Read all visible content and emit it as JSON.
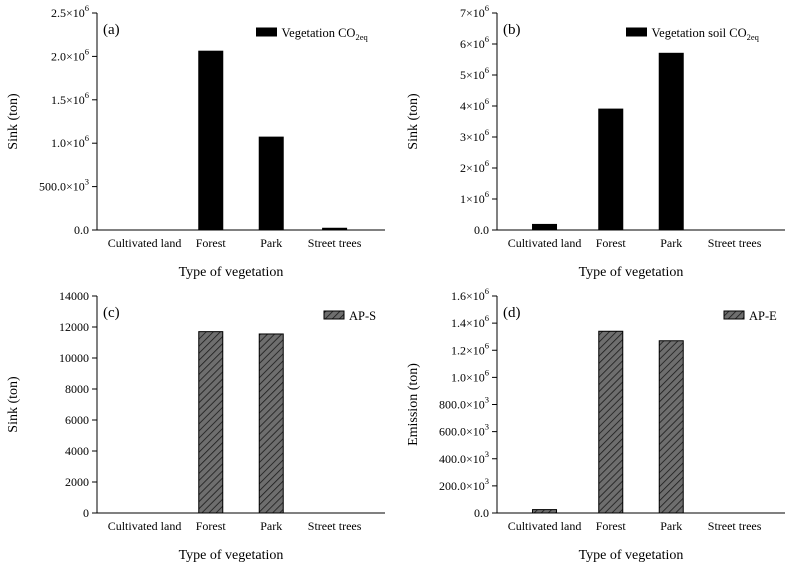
{
  "colors": {
    "solid": "#000000",
    "hatch_fill": "#6e6e6e",
    "hatch_line": "#1a1a1a",
    "axis": "#000000"
  },
  "chart_data": [
    {
      "type": "bar",
      "panel_label": "(a)",
      "categories": [
        "Cultivated land",
        "Forest",
        "Park",
        "Street trees"
      ],
      "series": [
        {
          "name": "Vegetation CO2eq",
          "name_base": "Vegetation CO",
          "name_sub": "2eq",
          "style": "solid",
          "values": [
            0,
            2060000,
            1070000,
            20000
          ]
        }
      ],
      "xlabel": "Type of vegetation",
      "ylabel": "Sink (ton)",
      "ylim": [
        0,
        2500000
      ],
      "yticks": [
        0,
        500000,
        1000000,
        1500000,
        2000000,
        2500000
      ],
      "ytick_labels": [
        {
          "base": "0.0",
          "exp": ""
        },
        {
          "base": "500.0×10",
          "exp": "3"
        },
        {
          "base": "1.0×10",
          "exp": "6"
        },
        {
          "base": "1.5×10",
          "exp": "6"
        },
        {
          "base": "2.0×10",
          "exp": "6"
        },
        {
          "base": "2.5×10",
          "exp": "6"
        }
      ],
      "legend": "top-right"
    },
    {
      "type": "bar",
      "panel_label": "(b)",
      "categories": [
        "Cultivated land",
        "Forest",
        "Park",
        "Street trees"
      ],
      "series": [
        {
          "name": "Vegetation soil CO2eq",
          "name_base": "Vegetation soil CO",
          "name_sub": "2eq",
          "style": "solid",
          "values": [
            180000,
            3900000,
            5700000,
            0
          ]
        }
      ],
      "xlabel": "Type of vegetation",
      "ylabel": "Sink (ton)",
      "ylim": [
        0,
        7000000
      ],
      "yticks": [
        0,
        1000000,
        2000000,
        3000000,
        4000000,
        5000000,
        6000000,
        7000000
      ],
      "ytick_labels": [
        {
          "base": "0.0",
          "exp": ""
        },
        {
          "base": "1×10",
          "exp": "6"
        },
        {
          "base": "2×10",
          "exp": "6"
        },
        {
          "base": "3×10",
          "exp": "6"
        },
        {
          "base": "4×10",
          "exp": "6"
        },
        {
          "base": "5×10",
          "exp": "6"
        },
        {
          "base": "6×10",
          "exp": "6"
        },
        {
          "base": "7×10",
          "exp": "6"
        }
      ],
      "legend": "top-right"
    },
    {
      "type": "bar",
      "panel_label": "(c)",
      "categories": [
        "Cultivated land",
        "Forest",
        "Park",
        "Street trees"
      ],
      "series": [
        {
          "name": "AP-S",
          "name_base": "AP-S",
          "name_sub": "",
          "style": "hatch",
          "values": [
            0,
            11700,
            11550,
            0
          ]
        }
      ],
      "xlabel": "Type of vegetation",
      "ylabel": "Sink (ton)",
      "ylim": [
        0,
        14000
      ],
      "yticks": [
        0,
        2000,
        4000,
        6000,
        8000,
        10000,
        12000,
        14000
      ],
      "ytick_labels": [
        {
          "base": "0",
          "exp": ""
        },
        {
          "base": "2000",
          "exp": ""
        },
        {
          "base": "4000",
          "exp": ""
        },
        {
          "base": "6000",
          "exp": ""
        },
        {
          "base": "8000",
          "exp": ""
        },
        {
          "base": "10000",
          "exp": ""
        },
        {
          "base": "12000",
          "exp": ""
        },
        {
          "base": "14000",
          "exp": ""
        }
      ],
      "legend": "top-right"
    },
    {
      "type": "bar",
      "panel_label": "(d)",
      "categories": [
        "Cultivated land",
        "Forest",
        "Park",
        "Street trees"
      ],
      "series": [
        {
          "name": "AP-E",
          "name_base": "AP-E",
          "name_sub": "",
          "style": "hatch",
          "values": [
            25000,
            1340000,
            1270000,
            0
          ]
        }
      ],
      "xlabel": "Type of vegetation",
      "ylabel": "Emission (ton)",
      "ylim": [
        0,
        1600000
      ],
      "yticks": [
        0,
        200000,
        400000,
        600000,
        800000,
        1000000,
        1200000,
        1400000,
        1600000
      ],
      "ytick_labels": [
        {
          "base": "0.0",
          "exp": ""
        },
        {
          "base": "200.0×10",
          "exp": "3"
        },
        {
          "base": "400.0×10",
          "exp": "3"
        },
        {
          "base": "600.0×10",
          "exp": "3"
        },
        {
          "base": "800.0×10",
          "exp": "3"
        },
        {
          "base": "1.0×10",
          "exp": "6"
        },
        {
          "base": "1.2×10",
          "exp": "6"
        },
        {
          "base": "1.4×10",
          "exp": "6"
        },
        {
          "base": "1.6×10",
          "exp": "6"
        }
      ],
      "legend": "top-right"
    }
  ]
}
